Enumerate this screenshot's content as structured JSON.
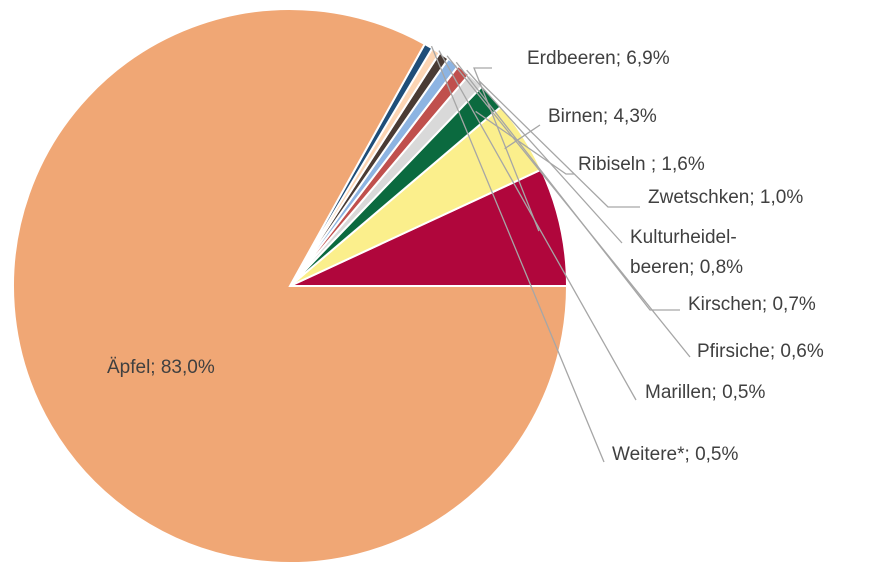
{
  "chart_data": {
    "type": "pie",
    "title": "",
    "slices": [
      {
        "label": "Erdbeeren; 6,9%",
        "value": 6.9,
        "color": "#b0063c"
      },
      {
        "label": "Birnen; 4,3%",
        "value": 4.3,
        "color": "#fbef8c"
      },
      {
        "label": "Ribiseln ; 1,6%",
        "value": 1.6,
        "color": "#0b6a3f"
      },
      {
        "label": "Zwetschken; 1,0%",
        "value": 1.0,
        "color": "#d9d9d9"
      },
      {
        "label": [
          "Kulturheidel-",
          "beeren; 0,8%"
        ],
        "value": 0.8,
        "color": "#c0504d"
      },
      {
        "label": "Kirschen; 0,7%",
        "value": 0.7,
        "color": "#8db4e2"
      },
      {
        "label": "Pfirsiche; 0,6%",
        "value": 0.6,
        "color": "#4a3b34"
      },
      {
        "label": "Marillen; 0,5%",
        "value": 0.5,
        "color": "#fcd5b4"
      },
      {
        "label": "Weitere*; 0,5%",
        "value": 0.5,
        "color": "#1f4e79"
      },
      {
        "label": "Äpfel; 83,0%",
        "value": 83.0,
        "color": "#f0a775"
      }
    ]
  }
}
